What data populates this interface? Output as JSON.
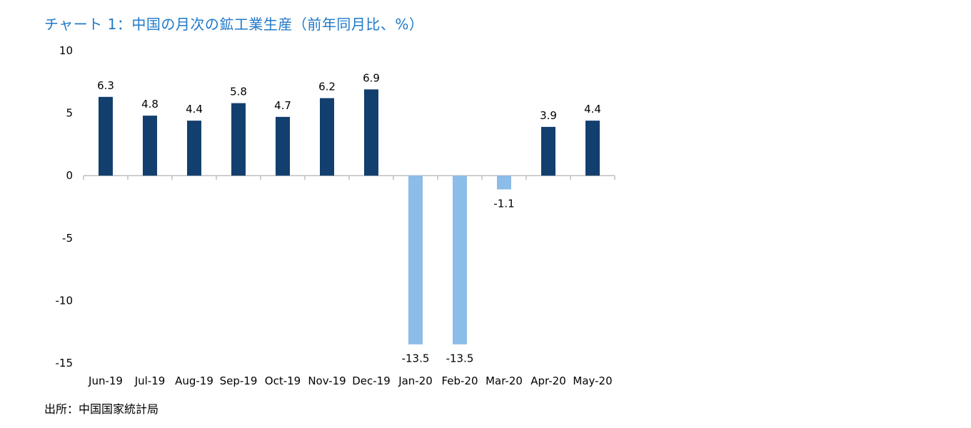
{
  "title": "チャート 1：中国の月次の鉱工業生産（前年同月比、%）",
  "source": "出所：中国国家統計局",
  "chart_data": {
    "type": "bar",
    "title": "チャート 1：中国の月次の鉱工業生産（前年同月比、%）",
    "xlabel": "",
    "ylabel": "",
    "categories": [
      "Jun-19",
      "Jul-19",
      "Aug-19",
      "Sep-19",
      "Oct-19",
      "Nov-19",
      "Dec-19",
      "Jan-20",
      "Feb-20",
      "Mar-20",
      "Apr-20",
      "May-20"
    ],
    "values": [
      6.3,
      4.8,
      4.4,
      5.8,
      4.7,
      6.2,
      6.9,
      -13.5,
      -13.5,
      -1.1,
      3.9,
      4.4
    ],
    "data_labels": [
      "6.3",
      "4.8",
      "4.4",
      "5.8",
      "4.7",
      "6.2",
      "6.9",
      "-13.5",
      "-13.5",
      "-1.1",
      "3.9",
      "4.4"
    ],
    "ylim": [
      -15,
      10
    ],
    "yticks": [
      10,
      5,
      0,
      -5,
      -10,
      -15
    ],
    "ytick_labels": [
      "10",
      "5",
      "0",
      "-5",
      "-10",
      "-15"
    ],
    "grid": false,
    "legend": "none",
    "colors": {
      "positive": "#123f6e",
      "negative": "#8cbce8",
      "axis": "#bfbfbf",
      "text": "#000000",
      "title": "#1f78c8"
    }
  }
}
